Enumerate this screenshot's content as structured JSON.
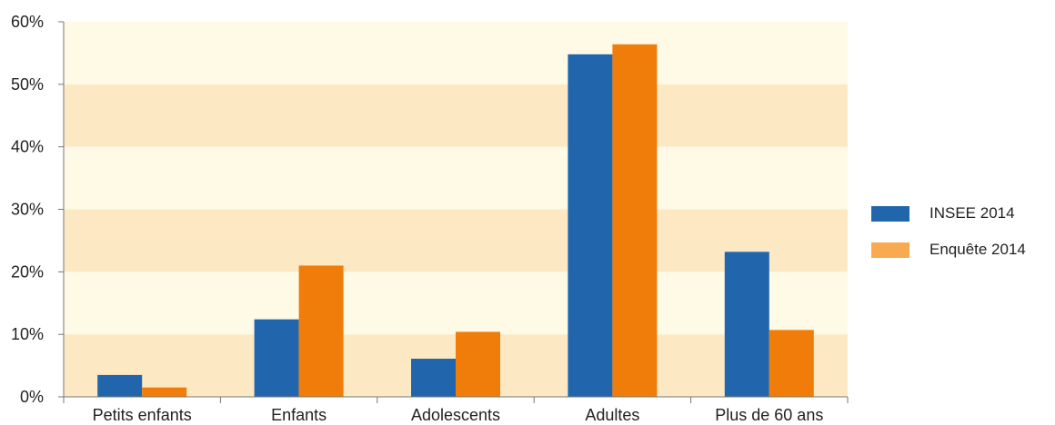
{
  "chart_data": {
    "type": "bar",
    "categories": [
      "Petits enfants",
      "Enfants",
      "Adolescents",
      "Adultes",
      "Plus de 60 ans"
    ],
    "series": [
      {
        "name": "INSEE 2014",
        "values": [
          3.5,
          12.4,
          6.1,
          54.8,
          23.2
        ]
      },
      {
        "name": "Enquête 2014",
        "values": [
          1.5,
          21.0,
          10.4,
          56.4,
          10.7
        ]
      }
    ],
    "yticks": [
      "0%",
      "10%",
      "20%",
      "30%",
      "40%",
      "50%",
      "60%"
    ],
    "ylim": [
      0,
      60
    ],
    "title": "",
    "xlabel": "",
    "ylabel": "",
    "grid": "alternating horizontal bands",
    "legend_position": "right"
  },
  "colors": {
    "series": [
      "#2166ac",
      "#f07c0a"
    ],
    "legend_swatches": [
      "#2166ac",
      "#f9a94f"
    ],
    "band_dark": "#fce9c4",
    "band_light": "#fefae6",
    "axis": "#777777"
  }
}
